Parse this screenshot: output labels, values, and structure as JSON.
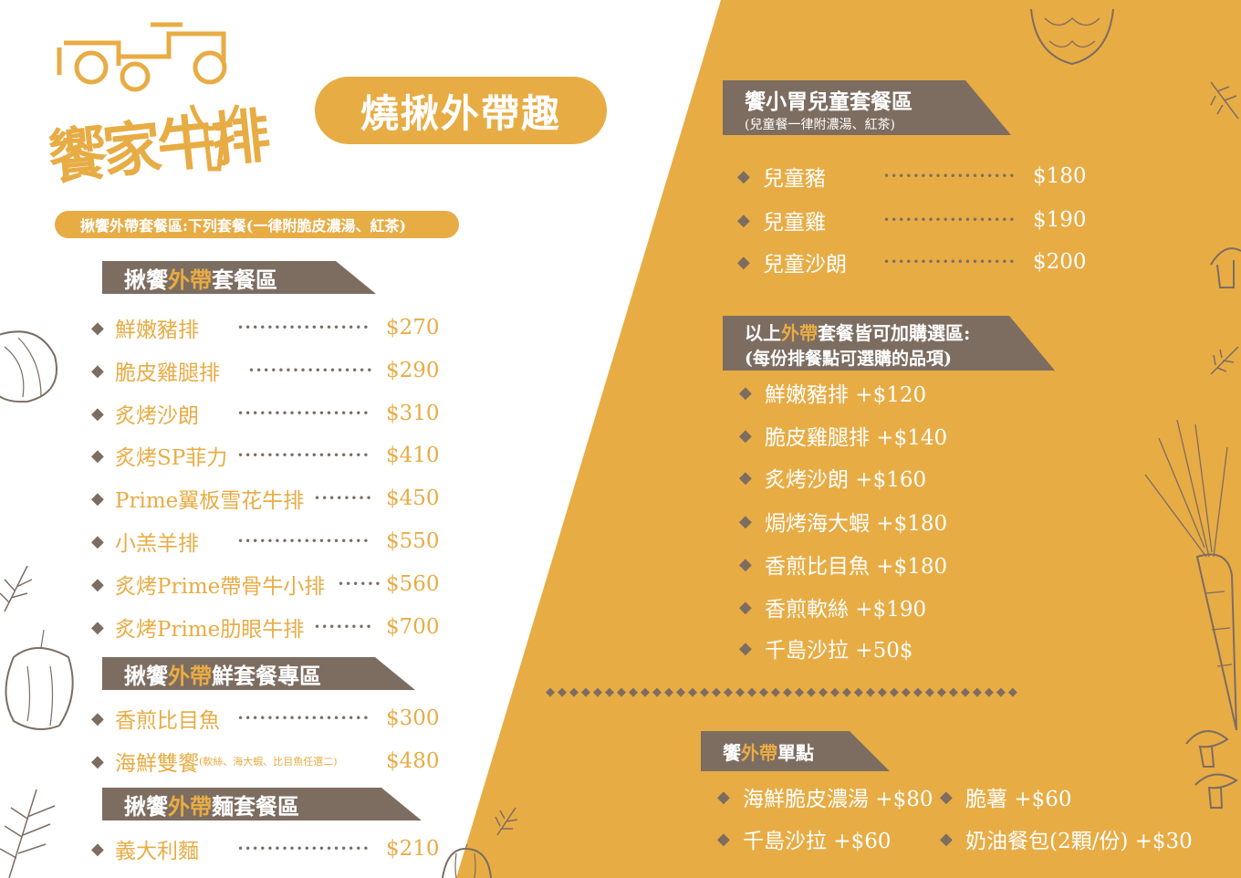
{
  "colors": {
    "accent": "#e8ac45",
    "banner": "#7d6d61",
    "text": "#7d6d61",
    "white": "#ffffff"
  },
  "logo": {
    "text": "饗家牛排",
    "icons": [
      "tractor-icon",
      "bull-head-icon"
    ]
  },
  "page_title": "燒揪外帶趣",
  "note": "揪饗外帶套餐區:下列套餐(一律附脆皮濃湯、紅茶)",
  "left_sections": [
    {
      "title_pre": "揪饗",
      "title_hl": "外帶",
      "title_post": "套餐區",
      "items": [
        {
          "name": "鮮嫩豬排",
          "price": "$270"
        },
        {
          "name": "脆皮雞腿排",
          "price": "$290"
        },
        {
          "name": "炙烤沙朗",
          "price": "$310"
        },
        {
          "name": "炙烤SP菲力",
          "price": "$410"
        },
        {
          "name": "Prime翼板雪花牛排",
          "price": "$450"
        },
        {
          "name": "小羔羊排",
          "price": "$550"
        },
        {
          "name": "炙烤Prime帶骨牛小排",
          "price": "$560"
        },
        {
          "name": "炙烤Prime肋眼牛排",
          "price": "$700"
        }
      ]
    },
    {
      "title_pre": "揪饗",
      "title_hl": "外帶",
      "title_post": "鮮套餐專區",
      "items": [
        {
          "name": "香煎比目魚",
          "price": "$300"
        },
        {
          "name": "海鮮雙饗",
          "sub": "(軟絲、海大蝦、比目魚任選二)",
          "price": "$480"
        }
      ]
    },
    {
      "title_pre": "揪饗",
      "title_hl": "外帶",
      "title_post": "麵套餐區",
      "items": [
        {
          "name": "義大利麵",
          "price": "$210"
        }
      ]
    }
  ],
  "kids": {
    "title": "饗小胃兒童套餐區",
    "subtitle": "(兒童餐一律附濃湯、紅茶)",
    "items": [
      {
        "name": "兒童豬",
        "price": "$180"
      },
      {
        "name": "兒童雞",
        "price": "$190"
      },
      {
        "name": "兒童沙朗",
        "price": "$200"
      }
    ]
  },
  "addon": {
    "title_pre": "以上",
    "title_hl": "外帶",
    "title_post": "套餐皆可加購選區:",
    "subtitle": "(每份排餐點可選購的品項)",
    "items": [
      "鮮嫩豬排 +$120",
      "脆皮雞腿排 +$140",
      "炙烤沙朗 +$160",
      "焗烤海大蝦 +$180",
      "香煎比目魚 +$180",
      "香煎軟絲 +$190",
      "千島沙拉 +50$"
    ]
  },
  "single": {
    "title_pre": "饗",
    "title_hl": "外帶",
    "title_post": "單點",
    "items": [
      "海鮮脆皮濃湯 +$80",
      "脆薯 +$60",
      "千島沙拉 +$60",
      "奶油餐包(2顆/份) +$30"
    ]
  }
}
